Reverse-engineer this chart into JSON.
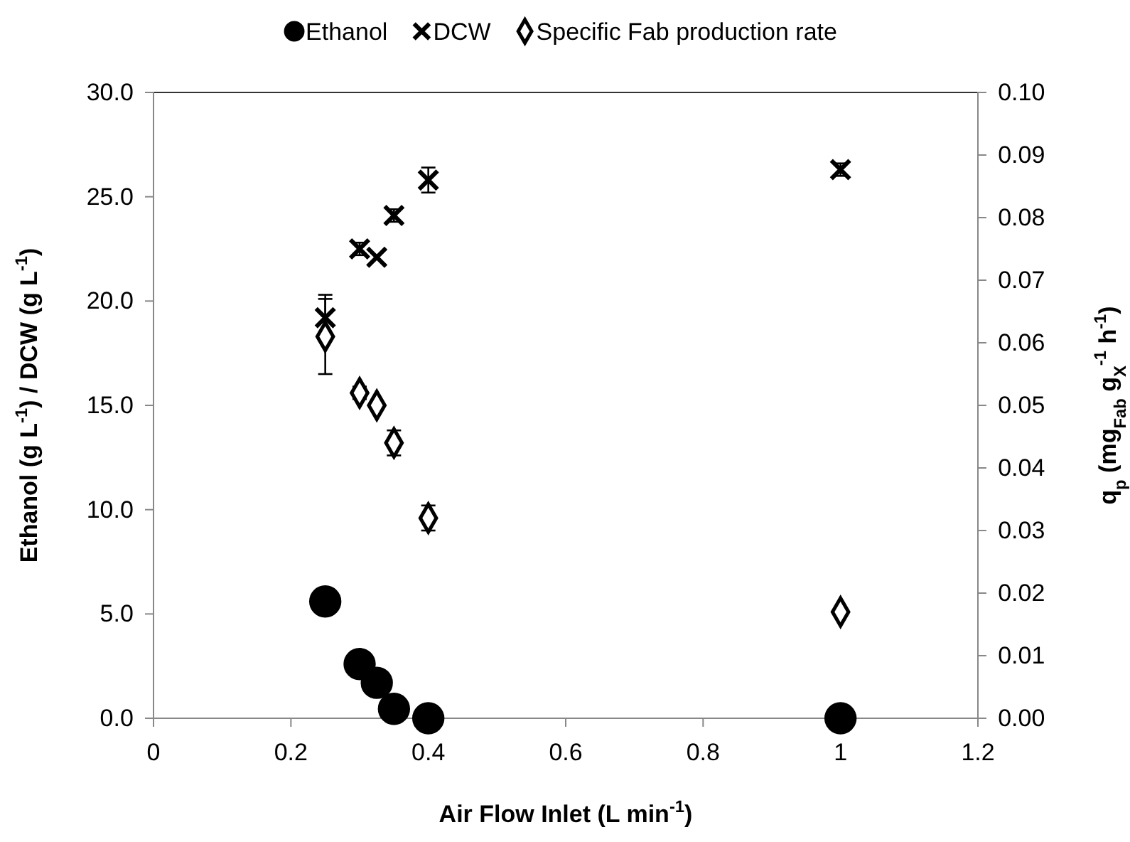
{
  "chart_data": {
    "type": "scatter",
    "xlabel": "Air Flow Inlet (L min$^{-1}$)",
    "ylabel": "Ethanol (g L$^{-1}$) / DCW (g L$^{-1}$)",
    "y2label": "q$_{p}$ (mg$_{Fab}$ g$_{X}$$^{-1}$ h$^{-1}$)",
    "xlim": [
      0,
      1.2
    ],
    "xticks": [
      0,
      0.2,
      0.4,
      0.6,
      0.8,
      1,
      1.2
    ],
    "ylim": [
      0,
      30
    ],
    "yticks": [
      {
        "value": 0,
        "label": "0.0"
      },
      {
        "value": 5,
        "label": "5.0"
      },
      {
        "value": 10,
        "label": "10.0"
      },
      {
        "value": 15,
        "label": "15.0"
      },
      {
        "value": 20,
        "label": "20.0"
      },
      {
        "value": 25,
        "label": "25.0"
      },
      {
        "value": 30,
        "label": "30.0"
      }
    ],
    "y2lim": [
      0,
      0.1
    ],
    "y2ticks": [
      {
        "value": 0,
        "label": "0.00"
      },
      0.01,
      0.02,
      0.03,
      0.04,
      0.05,
      0.06,
      0.07,
      0.08,
      0.09,
      {
        "value": 0.1,
        "label": "0.10"
      }
    ],
    "x": [
      0.25,
      0.3,
      0.325,
      0.35,
      0.4,
      1
    ],
    "legend": "top",
    "grid": false,
    "series": [
      {
        "name": "Ethanol",
        "color": "#000000",
        "marker": "circle",
        "values": [
          5.6,
          2.6,
          1.7,
          0.45,
          0,
          0
        ]
      },
      {
        "name": "DCW",
        "color": "#000000",
        "marker": "cross",
        "values": [
          19.2,
          22.5,
          22.1,
          24.1,
          25.8,
          26.3
        ],
        "errors": [
          1.1,
          0.3,
          null,
          0.3,
          0.6,
          0.3
        ]
      },
      {
        "name": "Specific Fab production rate",
        "color": "#000000",
        "marker": "diamond",
        "axis": "y2",
        "values": [
          0.061,
          0.052,
          0.05,
          0.044,
          0.032,
          0.017
        ],
        "errors": [
          0.006,
          0.001,
          null,
          0.002,
          0.002,
          null
        ]
      }
    ]
  }
}
